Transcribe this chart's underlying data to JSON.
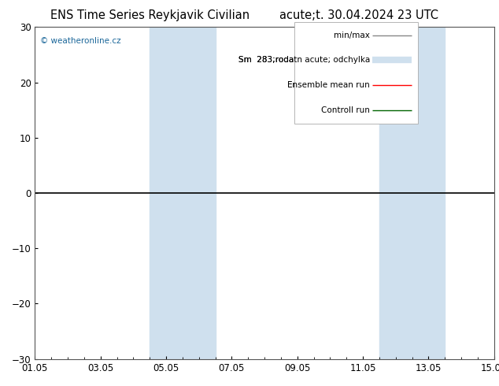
{
  "title_left": "ENS Time Series Reykjavik Civilian",
  "title_right": "acute;t. 30.04.2024 23 UTC",
  "watermark": "© weatheronline.cz",
  "ylim": [
    -30,
    30
  ],
  "yticks": [
    -30,
    -20,
    -10,
    0,
    10,
    20,
    30
  ],
  "xlim_start": 0,
  "xlim_end": 14,
  "xtick_labels": [
    "01.05",
    "03.05",
    "05.05",
    "07.05",
    "09.05",
    "11.05",
    "13.05",
    "15.05"
  ],
  "xtick_positions": [
    0,
    2,
    4,
    6,
    8,
    10,
    12,
    14
  ],
  "shaded_bands": [
    {
      "xmin": 3.5,
      "xmax": 5.5
    },
    {
      "xmin": 10.5,
      "xmax": 12.5
    }
  ],
  "shaded_color": "#cfe0ee",
  "zero_line_color": "#000000",
  "background_color": "#ffffff",
  "plot_bg_color": "#ffffff",
  "legend_labels": [
    "min/max",
    "Sm  283;rodatn acute; odchylka",
    "Ensemble mean run",
    "Controll run"
  ],
  "legend_colors": [
    "#888888",
    "#cfe0ee",
    "#ff0000",
    "#006400"
  ],
  "legend_lws": [
    1.0,
    6,
    1.0,
    1.0
  ],
  "title_fontsize": 10.5,
  "tick_fontsize": 8.5,
  "legend_fontsize": 7.5
}
